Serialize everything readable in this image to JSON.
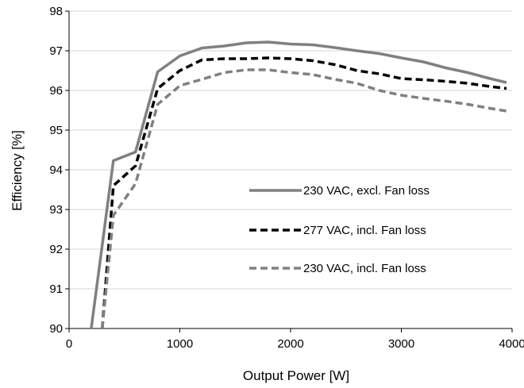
{
  "chart_data": {
    "type": "line",
    "xlabel": "Output Power [W]",
    "ylabel": "Efficiency [%]",
    "xlim": [
      0,
      4000
    ],
    "ylim": [
      90,
      98
    ],
    "xticks": [
      "0",
      "1000",
      "2000",
      "3000",
      "4000"
    ],
    "yticks": [
      "90",
      "91",
      "92",
      "93",
      "94",
      "95",
      "96",
      "97",
      "98"
    ],
    "grid": "horizontal",
    "legend_position": "center-right",
    "series": [
      {
        "name": "230 VAC, excl. Fan loss",
        "color": "#808080",
        "dash": "solid",
        "x": [
          200,
          400,
          600,
          800,
          1000,
          1200,
          1400,
          1600,
          1800,
          2000,
          2200,
          2400,
          2600,
          2800,
          3000,
          3200,
          3400,
          3600,
          3800,
          3950
        ],
        "y": [
          90.0,
          94.23,
          94.45,
          96.47,
          96.87,
          97.07,
          97.12,
          97.2,
          97.22,
          97.17,
          97.15,
          97.08,
          97.0,
          96.93,
          96.82,
          96.72,
          96.57,
          96.45,
          96.3,
          96.2
        ]
      },
      {
        "name": "277 VAC, incl. Fan loss",
        "color": "#000000",
        "dash": "dashed",
        "x": [
          300,
          400,
          600,
          800,
          1000,
          1200,
          1400,
          1600,
          1800,
          2000,
          2200,
          2400,
          2600,
          2800,
          3000,
          3200,
          3400,
          3600,
          3800,
          3950
        ],
        "y": [
          90.0,
          93.6,
          94.1,
          96.05,
          96.5,
          96.77,
          96.8,
          96.8,
          96.82,
          96.8,
          96.75,
          96.65,
          96.5,
          96.42,
          96.3,
          96.27,
          96.23,
          96.18,
          96.1,
          96.05
        ]
      },
      {
        "name": "230 VAC, incl. Fan loss",
        "color": "#808080",
        "dash": "dashed",
        "x": [
          300,
          400,
          600,
          800,
          1000,
          1200,
          1400,
          1600,
          1800,
          2000,
          2200,
          2400,
          2600,
          2800,
          3000,
          3200,
          3400,
          3600,
          3800,
          3950
        ],
        "y": [
          90.0,
          92.85,
          93.65,
          95.65,
          96.12,
          96.28,
          96.45,
          96.52,
          96.52,
          96.45,
          96.4,
          96.28,
          96.18,
          96.0,
          95.88,
          95.8,
          95.73,
          95.65,
          95.55,
          95.48
        ]
      }
    ]
  }
}
